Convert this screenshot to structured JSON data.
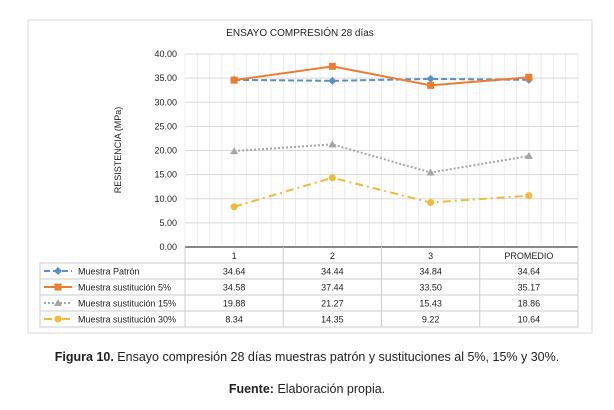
{
  "chart_data": {
    "type": "line",
    "title": "ENSAYO COMPRESIÓN 28 días",
    "ylabel": "RESISTENCIA (MPa)",
    "xlabel": "",
    "ylim": [
      0,
      40
    ],
    "yticks": [
      "0.00",
      "5.00",
      "10.00",
      "15.00",
      "20.00",
      "25.00",
      "30.00",
      "35.00",
      "40.00"
    ],
    "categories": [
      "1",
      "2",
      "3",
      "PROMEDIO"
    ],
    "grid": true,
    "legend": "data-table-below",
    "series": [
      {
        "name": "Muestra Patrón",
        "values": [
          34.64,
          34.44,
          34.84,
          34.64
        ],
        "labels": [
          "34.64",
          "34.44",
          "34.84",
          "34.64"
        ],
        "color": "#5b8fc9",
        "dash": "6,3",
        "marker": "diamond"
      },
      {
        "name": "Muestra sustitución 5%",
        "values": [
          34.58,
          37.44,
          33.5,
          35.17
        ],
        "labels": [
          "34.58",
          "37.44",
          "33.50",
          "35.17"
        ],
        "color": "#ed7d31",
        "dash": "",
        "marker": "square"
      },
      {
        "name": "Muestra sustitución 15%",
        "values": [
          19.88,
          21.27,
          15.43,
          18.86
        ],
        "labels": [
          "19.88",
          "21.27",
          "15.43",
          "18.86"
        ],
        "color": "#a5a5a5",
        "dash": "2,2",
        "marker": "triangle"
      },
      {
        "name": "Muestra sustitución 30%",
        "values": [
          8.34,
          14.35,
          9.22,
          10.64
        ],
        "labels": [
          "8.34",
          "14.35",
          "9.22",
          "10.64"
        ],
        "color": "#f5b93a",
        "dash": "8,4,2,4",
        "marker": "circle"
      }
    ]
  },
  "caption": {
    "label": "Figura 10.",
    "text": " Ensayo compresión 28 días muestras patrón y sustituciones al 5%, 15% y 30%."
  },
  "source": {
    "label": "Fuente:",
    "text": " Elaboración propia."
  }
}
